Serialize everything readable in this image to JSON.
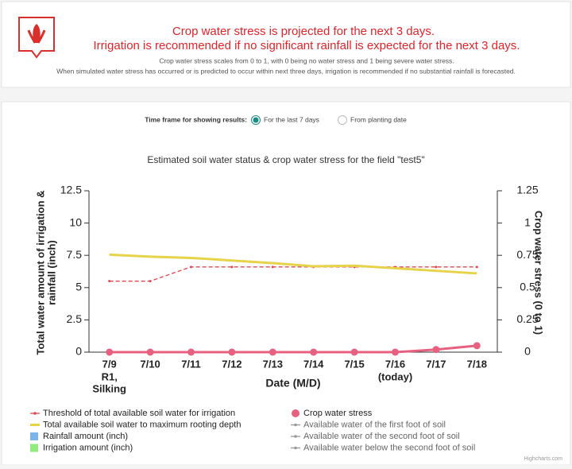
{
  "header": {
    "alert_lines": [
      "Crop water stress is projected for the next 3 days.",
      "Irrigation is recommended if no significant rainfall is expected for the next 3 days."
    ],
    "notes": [
      "Crop water stress scales from 0 to 1, with 0 being no water stress and 1 being severe water stress.",
      "When simulated water stress has occurred or is predicted to occur within next three days, irrigation is recommended if no substantial rainfall is forecasted."
    ]
  },
  "time_frame": {
    "label": "Time frame for showing results:",
    "options": [
      "For the last 7 days",
      "From planting date"
    ],
    "selected": 0
  },
  "chart_data": {
    "type": "line",
    "title": "Estimated soil water status & crop water stress for the field \"test5\"",
    "categories": [
      "7/9",
      "7/10",
      "7/11",
      "7/12",
      "7/13",
      "7/14",
      "7/15",
      "7/16",
      "7/17",
      "7/18"
    ],
    "annotations": [
      {
        "x": "7/9",
        "lines": [
          "R1,",
          "Silking"
        ]
      },
      {
        "x": "7/16",
        "lines": [
          "(today)"
        ]
      }
    ],
    "x_label": "Date (M/D)",
    "y_label": [
      "Total water amount of irrigation &",
      "rainfall (inch)"
    ],
    "y2_label": "Crop water stress (0 to 1)",
    "ylim": [
      0,
      12.5
    ],
    "yticks": [
      0,
      2.5,
      5,
      7.5,
      10,
      12.5
    ],
    "y2lim": [
      0,
      1.25
    ],
    "y2ticks": [
      0,
      0.25,
      0.5,
      0.75,
      1,
      1.25
    ],
    "series": [
      {
        "name": "Threshold of total available soil water for irrigation",
        "kind": "dashed",
        "color": "#e0484f",
        "values": [
          5.5,
          5.5,
          6.6,
          6.6,
          6.6,
          6.6,
          6.6,
          6.6,
          6.6,
          6.6
        ]
      },
      {
        "name": "Total available soil water to maximum rooting depth",
        "kind": "line",
        "color": "#e6d34a",
        "values": [
          7.55,
          7.4,
          7.3,
          7.1,
          6.9,
          6.65,
          6.7,
          6.5,
          6.3,
          6.1
        ]
      },
      {
        "name": "Rainfall amount (inch)",
        "kind": "bar",
        "color": "#7cb5ec",
        "values": [
          0,
          0,
          0,
          0,
          0,
          0,
          0,
          0,
          0,
          0
        ]
      },
      {
        "name": "Irrigation amount (inch)",
        "kind": "bar",
        "color": "#90ed7d",
        "values": [
          0,
          0,
          0,
          0,
          0,
          0,
          0,
          0,
          0,
          0
        ]
      },
      {
        "name": "Crop water stress",
        "kind": "markers",
        "axis": "y2",
        "color": "#e8607f",
        "values": [
          0,
          0,
          0,
          0,
          0,
          0,
          0,
          0,
          0.02,
          0.05
        ]
      },
      {
        "name": "Available water of the first foot of soil",
        "kind": "hidden",
        "color": "#999999",
        "values": [
          null,
          null,
          null,
          null,
          null,
          null,
          null,
          null,
          null,
          null
        ]
      },
      {
        "name": "Available water of the second foot of soil",
        "kind": "hidden",
        "color": "#999999",
        "values": [
          null,
          null,
          null,
          null,
          null,
          null,
          null,
          null,
          null,
          null
        ]
      },
      {
        "name": "Available water below the second foot of soil",
        "kind": "hidden",
        "color": "#999999",
        "values": [
          null,
          null,
          null,
          null,
          null,
          null,
          null,
          null,
          null,
          null
        ]
      }
    ],
    "credit": "Highcharts.com"
  }
}
